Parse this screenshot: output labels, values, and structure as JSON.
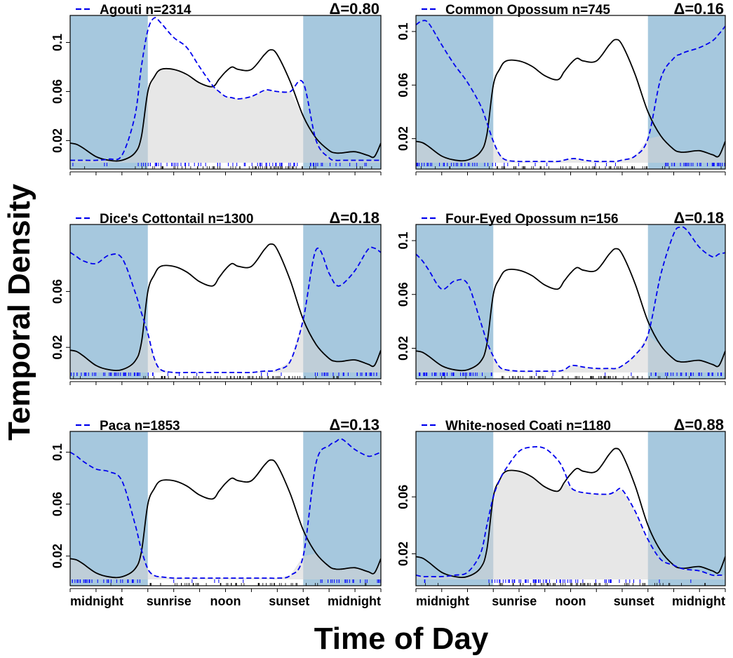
{
  "figure": {
    "ylabel": "Temporal Density",
    "xlabel": "Time of Day",
    "colors": {
      "night_shade": "#a6c8de",
      "overlap_fill": "#d3d3d3",
      "reference_line": "#000000",
      "species_line": "#0000ee",
      "rug_species": "#0000ff",
      "rug_reference": "#000000",
      "frame": "#000000"
    },
    "x_tick_labels": [
      "midnight",
      "sunrise",
      "noon",
      "sunset",
      "midnight"
    ]
  },
  "chart_data": [
    {
      "type": "line",
      "title": "Agouti n=2314",
      "delta_label": "Δ=0.80",
      "xlim": [
        0,
        24
      ],
      "ylim": [
        0.002,
        0.122
      ],
      "yticks": [
        0.02,
        0.06,
        0.1
      ],
      "ytick_labels": [
        "0.02",
        "0.06",
        "0.1"
      ],
      "night_shading": [
        [
          0,
          6
        ],
        [
          18,
          24
        ]
      ],
      "overlap_shaded": true,
      "x": [
        0,
        0.5,
        1,
        2,
        3,
        4,
        5,
        5.5,
        6,
        6.5,
        7,
        8,
        9,
        10,
        11,
        11.5,
        12,
        12.5,
        13,
        14,
        15,
        15.5,
        16,
        17,
        18,
        19,
        20,
        20.5,
        21,
        22,
        23,
        23.5,
        24
      ],
      "series": [
        {
          "name": "Agouti n=2314",
          "role": "species",
          "style": "dashed",
          "values": [
            0.004,
            0.004,
            0.004,
            0.004,
            0.005,
            0.008,
            0.04,
            0.08,
            0.11,
            0.12,
            0.116,
            0.104,
            0.096,
            0.08,
            0.065,
            0.06,
            0.056,
            0.055,
            0.054,
            0.056,
            0.061,
            0.061,
            0.06,
            0.06,
            0.067,
            0.02,
            0.006,
            0.004,
            0.004,
            0.004,
            0.004,
            0.004,
            0.004
          ]
        },
        {
          "role": "reference",
          "style": "solid",
          "values": [
            0.018,
            0.017,
            0.014,
            0.007,
            0.004,
            0.004,
            0.01,
            0.023,
            0.06,
            0.072,
            0.078,
            0.078,
            0.074,
            0.067,
            0.064,
            0.07,
            0.076,
            0.08,
            0.078,
            0.078,
            0.09,
            0.094,
            0.09,
            0.068,
            0.04,
            0.022,
            0.012,
            0.01,
            0.01,
            0.011,
            0.008,
            0.007,
            0.018
          ]
        }
      ]
    },
    {
      "type": "line",
      "title": "Common Opossum n=745",
      "delta_label": "Δ=0.16",
      "xlim": [
        0,
        24
      ],
      "ylim": [
        0.002,
        0.112
      ],
      "yticks": [
        0.02,
        0.06,
        0.1
      ],
      "ytick_labels": [
        "0.02",
        "0.06",
        "0.1"
      ],
      "night_shading": [
        [
          0,
          6
        ],
        [
          18,
          24
        ]
      ],
      "overlap_shaded": true,
      "x": [
        0,
        0.5,
        1,
        2,
        3,
        4,
        5,
        5.5,
        6,
        6.5,
        7,
        8,
        9,
        10,
        11,
        11.5,
        12,
        12.5,
        13,
        14,
        15,
        15.5,
        16,
        17,
        18,
        19,
        20,
        20.5,
        21,
        22,
        23,
        23.5,
        24
      ],
      "series": [
        {
          "name": "Common Opossum n=745",
          "role": "species",
          "style": "dashed",
          "values": [
            0.105,
            0.108,
            0.106,
            0.09,
            0.075,
            0.062,
            0.045,
            0.032,
            0.018,
            0.008,
            0.004,
            0.003,
            0.003,
            0.003,
            0.003,
            0.004,
            0.005,
            0.005,
            0.004,
            0.003,
            0.003,
            0.003,
            0.004,
            0.007,
            0.02,
            0.065,
            0.08,
            0.083,
            0.085,
            0.088,
            0.093,
            0.098,
            0.104
          ]
        },
        {
          "role": "reference",
          "style": "solid",
          "values": [
            0.018,
            0.017,
            0.014,
            0.007,
            0.004,
            0.004,
            0.01,
            0.023,
            0.06,
            0.072,
            0.078,
            0.078,
            0.074,
            0.067,
            0.064,
            0.07,
            0.076,
            0.08,
            0.078,
            0.078,
            0.09,
            0.094,
            0.09,
            0.068,
            0.04,
            0.022,
            0.012,
            0.01,
            0.01,
            0.011,
            0.008,
            0.007,
            0.018
          ]
        }
      ]
    },
    {
      "type": "line",
      "title": "Dice's Cottontail n=1300",
      "delta_label": "Δ=0.18",
      "xlim": [
        0,
        24
      ],
      "ylim": [
        0.002,
        0.108
      ],
      "yticks": [
        0.02,
        0.06
      ],
      "ytick_labels": [
        "0.02",
        "0.06"
      ],
      "night_shading": [
        [
          0,
          6
        ],
        [
          18,
          24
        ]
      ],
      "overlap_shaded": true,
      "x": [
        0,
        0.5,
        1,
        2,
        3,
        4,
        5,
        5.5,
        6,
        6.5,
        7,
        8,
        9,
        10,
        11,
        11.5,
        12,
        12.5,
        13,
        14,
        15,
        15.5,
        16,
        17,
        18,
        19,
        20,
        20.5,
        21,
        22,
        23,
        23.5,
        24
      ],
      "series": [
        {
          "name": "Dice's Cottontail n=1300",
          "role": "species",
          "style": "dashed",
          "values": [
            0.088,
            0.085,
            0.082,
            0.08,
            0.086,
            0.084,
            0.06,
            0.045,
            0.03,
            0.012,
            0.004,
            0.002,
            0.002,
            0.002,
            0.002,
            0.002,
            0.002,
            0.002,
            0.002,
            0.002,
            0.003,
            0.003,
            0.004,
            0.01,
            0.04,
            0.09,
            0.073,
            0.065,
            0.065,
            0.075,
            0.09,
            0.091,
            0.088
          ]
        },
        {
          "role": "reference",
          "style": "solid",
          "values": [
            0.018,
            0.017,
            0.014,
            0.007,
            0.004,
            0.004,
            0.01,
            0.023,
            0.06,
            0.072,
            0.078,
            0.078,
            0.074,
            0.067,
            0.064,
            0.07,
            0.076,
            0.08,
            0.078,
            0.078,
            0.09,
            0.094,
            0.09,
            0.068,
            0.04,
            0.022,
            0.012,
            0.01,
            0.01,
            0.011,
            0.008,
            0.007,
            0.018
          ]
        }
      ]
    },
    {
      "type": "line",
      "title": "Four-Eyed Opossum n=156",
      "delta_label": "Δ=0.18",
      "xlim": [
        0,
        24
      ],
      "ylim": [
        0.002,
        0.112
      ],
      "yticks": [
        0.02,
        0.06,
        0.1
      ],
      "ytick_labels": [
        "0.02",
        "0.06",
        "0.1"
      ],
      "night_shading": [
        [
          0,
          6
        ],
        [
          18,
          24
        ]
      ],
      "overlap_shaded": true,
      "x": [
        0,
        0.5,
        1,
        2,
        3,
        4,
        5,
        5.5,
        6,
        6.5,
        7,
        8,
        9,
        10,
        11,
        11.5,
        12,
        12.5,
        13,
        14,
        15,
        15.5,
        16,
        17,
        18,
        19,
        20,
        20.5,
        21,
        22,
        23,
        23.5,
        24
      ],
      "series": [
        {
          "name": "Four-Eyed Opossum n=156",
          "role": "species",
          "style": "dashed",
          "values": [
            0.09,
            0.085,
            0.078,
            0.064,
            0.07,
            0.068,
            0.04,
            0.025,
            0.014,
            0.006,
            0.004,
            0.003,
            0.003,
            0.003,
            0.003,
            0.004,
            0.007,
            0.007,
            0.006,
            0.005,
            0.005,
            0.005,
            0.007,
            0.015,
            0.03,
            0.075,
            0.105,
            0.11,
            0.108,
            0.095,
            0.088,
            0.09,
            0.091
          ]
        },
        {
          "role": "reference",
          "style": "solid",
          "values": [
            0.018,
            0.017,
            0.014,
            0.007,
            0.004,
            0.004,
            0.01,
            0.023,
            0.06,
            0.072,
            0.078,
            0.078,
            0.074,
            0.067,
            0.064,
            0.07,
            0.076,
            0.08,
            0.078,
            0.078,
            0.09,
            0.094,
            0.09,
            0.068,
            0.04,
            0.022,
            0.012,
            0.01,
            0.01,
            0.011,
            0.008,
            0.007,
            0.018
          ]
        }
      ]
    },
    {
      "type": "line",
      "title": "Paca n=1853",
      "delta_label": "Δ=0.13",
      "xlim": [
        0,
        24
      ],
      "ylim": [
        0.002,
        0.116
      ],
      "yticks": [
        0.02,
        0.06,
        0.1
      ],
      "ytick_labels": [
        "0.02",
        "0.06",
        "0.1"
      ],
      "night_shading": [
        [
          0,
          6
        ],
        [
          18,
          24
        ]
      ],
      "overlap_shaded": true,
      "x": [
        0,
        0.5,
        1,
        2,
        3,
        4,
        5,
        5.5,
        6,
        6.5,
        7,
        8,
        9,
        10,
        11,
        11.5,
        12,
        12.5,
        13,
        14,
        15,
        15.5,
        16,
        17,
        18,
        19,
        20,
        20.5,
        21,
        22,
        23,
        23.5,
        24
      ],
      "series": [
        {
          "name": "Paca n=1853",
          "role": "species",
          "style": "dashed",
          "values": [
            0.1,
            0.097,
            0.093,
            0.087,
            0.085,
            0.078,
            0.045,
            0.025,
            0.01,
            0.005,
            0.004,
            0.003,
            0.003,
            0.003,
            0.003,
            0.003,
            0.003,
            0.003,
            0.003,
            0.003,
            0.003,
            0.003,
            0.003,
            0.005,
            0.02,
            0.092,
            0.105,
            0.108,
            0.11,
            0.102,
            0.097,
            0.098,
            0.1
          ]
        },
        {
          "role": "reference",
          "style": "solid",
          "values": [
            0.018,
            0.017,
            0.014,
            0.007,
            0.004,
            0.004,
            0.01,
            0.023,
            0.06,
            0.072,
            0.078,
            0.078,
            0.074,
            0.067,
            0.064,
            0.07,
            0.076,
            0.08,
            0.078,
            0.078,
            0.09,
            0.094,
            0.09,
            0.068,
            0.04,
            0.022,
            0.012,
            0.01,
            0.01,
            0.011,
            0.008,
            0.007,
            0.018
          ]
        }
      ]
    },
    {
      "type": "line",
      "title": "White-nosed Coati n=1180",
      "delta_label": "Δ=0.88",
      "xlim": [
        0,
        24
      ],
      "ylim": [
        0.002,
        0.106
      ],
      "yticks": [
        0.02,
        0.06
      ],
      "ytick_labels": [
        "0.02",
        "0.06"
      ],
      "night_shading": [
        [
          0,
          6
        ],
        [
          18,
          24
        ]
      ],
      "overlap_shaded": true,
      "x": [
        0,
        0.5,
        1,
        2,
        3,
        4,
        5,
        5.5,
        6,
        6.5,
        7,
        8,
        9,
        10,
        11,
        11.5,
        12,
        12.5,
        13,
        14,
        15,
        15.5,
        16,
        17,
        18,
        19,
        20,
        20.5,
        21,
        22,
        23,
        23.5,
        24
      ],
      "series": [
        {
          "name": "White-nosed Coati n=1180",
          "role": "species",
          "style": "dashed",
          "values": [
            0.005,
            0.004,
            0.004,
            0.004,
            0.005,
            0.007,
            0.02,
            0.04,
            0.06,
            0.072,
            0.08,
            0.092,
            0.095,
            0.094,
            0.086,
            0.078,
            0.067,
            0.064,
            0.063,
            0.062,
            0.062,
            0.064,
            0.065,
            0.05,
            0.03,
            0.016,
            0.012,
            0.01,
            0.009,
            0.008,
            0.005,
            0.005,
            0.005
          ]
        },
        {
          "role": "reference",
          "style": "solid",
          "values": [
            0.018,
            0.017,
            0.014,
            0.007,
            0.004,
            0.004,
            0.01,
            0.023,
            0.06,
            0.072,
            0.078,
            0.078,
            0.074,
            0.067,
            0.064,
            0.07,
            0.076,
            0.08,
            0.078,
            0.078,
            0.09,
            0.094,
            0.09,
            0.068,
            0.04,
            0.022,
            0.012,
            0.01,
            0.01,
            0.011,
            0.008,
            0.007,
            0.018
          ]
        }
      ]
    }
  ]
}
